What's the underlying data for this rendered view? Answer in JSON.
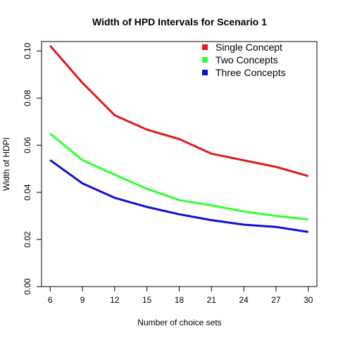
{
  "chart_data": {
    "type": "line",
    "title": "Width of HPD Intervals for Scenario 1",
    "xlabel": "Number of choice sets",
    "ylabel": "Width of HDPI",
    "x": [
      6,
      9,
      12,
      15,
      18,
      21,
      24,
      27,
      30
    ],
    "xlim": [
      5.2,
      30.8
    ],
    "ylim": [
      0,
      0.104
    ],
    "xticks": [
      "6",
      "9",
      "12",
      "15",
      "18",
      "21",
      "24",
      "27",
      "30"
    ],
    "yticks": [
      "0.00",
      "0.02",
      "0.04",
      "0.06",
      "0.08",
      "0.10"
    ],
    "ytick_values": [
      0,
      0.02,
      0.04,
      0.06,
      0.08,
      0.1
    ],
    "grid": false,
    "legend_position": "top-right",
    "series": [
      {
        "name": "Single Concept",
        "color": "#e31a1c",
        "values": [
          0.1022,
          0.0865,
          0.0727,
          0.0666,
          0.0626,
          0.0564,
          0.0536,
          0.0508,
          0.0469
        ]
      },
      {
        "name": "Two Concepts",
        "color": "#33ff33",
        "values": [
          0.0649,
          0.0537,
          0.0475,
          0.0415,
          0.0367,
          0.0345,
          0.0319,
          0.03,
          0.0285
        ]
      },
      {
        "name": "Three Concepts",
        "color": "#1010d0",
        "values": [
          0.0537,
          0.0438,
          0.0377,
          0.0338,
          0.0307,
          0.0282,
          0.0263,
          0.0253,
          0.0232
        ]
      }
    ]
  }
}
